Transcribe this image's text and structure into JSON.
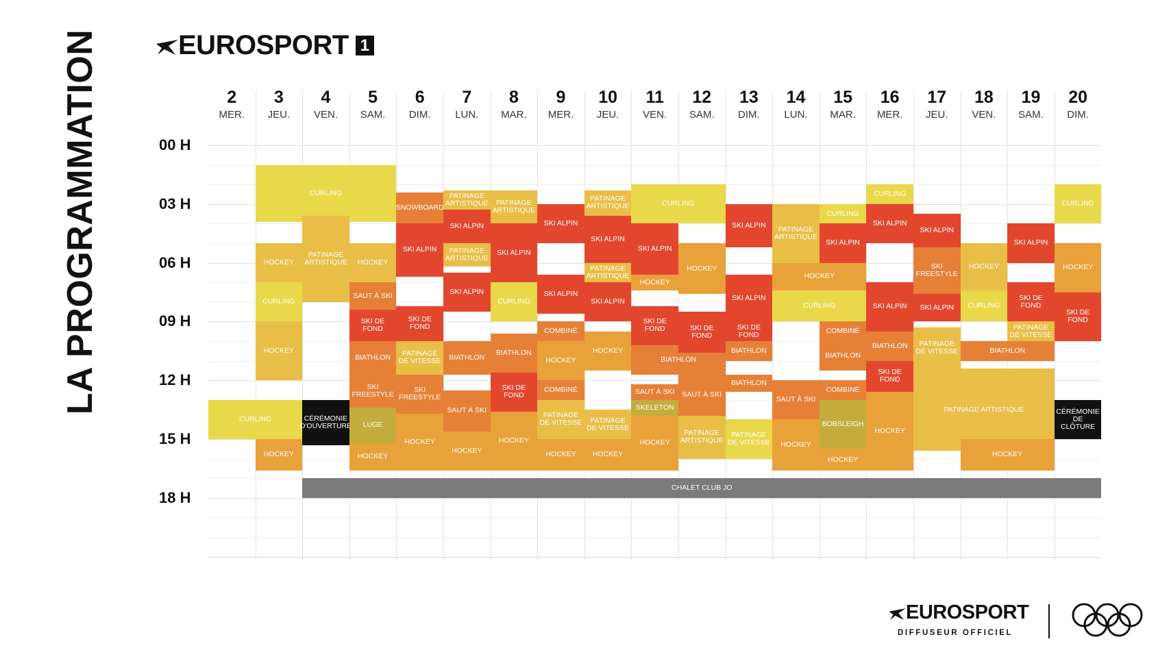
{
  "side_title": "LA PROGRAMMATION",
  "channel_logo": {
    "brand": "EUROSPORT",
    "channel": "1"
  },
  "footer": {
    "brand": "EUROSPORT",
    "subtitle": "DIFFUSEUR OFFICIEL",
    "rings_icon": "olympic-rings-icon"
  },
  "colors": {
    "yellow": "#E9D84A",
    "gold": "#E9BE47",
    "orange": "#E9A13A",
    "orange_dark": "#E68037",
    "red": "#E2472E",
    "olive": "#C4AC3C",
    "black": "#111111",
    "gray": "#7B7B7B"
  },
  "schedule": {
    "days": [
      {
        "num": "2",
        "name": "MER."
      },
      {
        "num": "3",
        "name": "JEU."
      },
      {
        "num": "4",
        "name": "VEN."
      },
      {
        "num": "5",
        "name": "SAM."
      },
      {
        "num": "6",
        "name": "DIM."
      },
      {
        "num": "7",
        "name": "LUN."
      },
      {
        "num": "8",
        "name": "MAR."
      },
      {
        "num": "9",
        "name": "MER."
      },
      {
        "num": "10",
        "name": "JEU."
      },
      {
        "num": "11",
        "name": "VEN."
      },
      {
        "num": "12",
        "name": "SAM."
      },
      {
        "num": "13",
        "name": "DIM."
      },
      {
        "num": "14",
        "name": "LUN."
      },
      {
        "num": "15",
        "name": "MAR."
      },
      {
        "num": "16",
        "name": "MER."
      },
      {
        "num": "17",
        "name": "JEU."
      },
      {
        "num": "18",
        "name": "VEN."
      },
      {
        "num": "19",
        "name": "SAM."
      },
      {
        "num": "20",
        "name": "DIM."
      }
    ],
    "hours": [
      "00 H",
      "03 H",
      "06 H",
      "09 H",
      "12 H",
      "15 H",
      "18 H"
    ],
    "events": [
      {
        "label": "CURLING",
        "col": 1,
        "span": 3,
        "start": 1.0,
        "end": 3.9,
        "color": "yellow"
      },
      {
        "label": "HOCKEY",
        "col": 1,
        "span": 1,
        "start": 5.0,
        "end": 7.0,
        "color": "gold"
      },
      {
        "label": "CURLING",
        "col": 1,
        "span": 1,
        "start": 7.0,
        "end": 9.0,
        "color": "yellow"
      },
      {
        "label": "HOCKEY",
        "col": 1,
        "span": 1,
        "start": 9.0,
        "end": 12.0,
        "color": "gold"
      },
      {
        "label": "CURLING",
        "col": 0,
        "span": 2,
        "start": 13.0,
        "end": 15.0,
        "color": "yellow"
      },
      {
        "label": "HOCKEY",
        "col": 1,
        "span": 1,
        "start": 15.0,
        "end": 16.6,
        "color": "orange"
      },
      {
        "label": "PATINAGE ARTISTIQUE",
        "col": 2,
        "span": 1,
        "start": 3.6,
        "end": 8.0,
        "color": "gold"
      },
      {
        "label": "CÉRÉMONIE D'OUVERTURE",
        "col": 2,
        "span": 1,
        "start": 13.0,
        "end": 15.3,
        "color": "black"
      },
      {
        "label": "HOCKEY",
        "col": 3,
        "span": 1,
        "start": 5.0,
        "end": 7.0,
        "color": "gold"
      },
      {
        "label": "SAUT À SKI",
        "col": 3,
        "span": 1,
        "start": 7.0,
        "end": 8.4,
        "color": "orange_dark"
      },
      {
        "label": "SKI DE FOND",
        "col": 3,
        "span": 1,
        "start": 8.4,
        "end": 10.0,
        "color": "red"
      },
      {
        "label": "BIATHLON",
        "col": 3,
        "span": 1,
        "start": 10.0,
        "end": 11.7,
        "color": "orange_dark"
      },
      {
        "label": "SKI FREESTYLE",
        "col": 3,
        "span": 1,
        "start": 11.7,
        "end": 13.4,
        "color": "orange_dark"
      },
      {
        "label": "LUGE",
        "col": 3,
        "span": 1,
        "start": 13.4,
        "end": 15.2,
        "color": "olive"
      },
      {
        "label": "HOCKEY",
        "col": 3,
        "span": 1,
        "start": 15.2,
        "end": 16.6,
        "color": "orange"
      },
      {
        "label": "SNOWBOARD",
        "col": 4,
        "span": 1,
        "start": 2.4,
        "end": 4.0,
        "color": "orange_dark"
      },
      {
        "label": "SKI ALPIN",
        "col": 4,
        "span": 1,
        "start": 4.0,
        "end": 6.7,
        "color": "red"
      },
      {
        "label": "SKI DE FOND",
        "col": 4,
        "span": 1,
        "start": 8.2,
        "end": 10.0,
        "color": "red"
      },
      {
        "label": "PATINAGE DE VITESSE",
        "col": 4,
        "span": 1,
        "start": 10.0,
        "end": 11.7,
        "color": "gold"
      },
      {
        "label": "SKI FREESTYLE",
        "col": 4,
        "span": 1,
        "start": 11.7,
        "end": 13.7,
        "color": "orange_dark"
      },
      {
        "label": "HOCKEY",
        "col": 4,
        "span": 1,
        "start": 13.7,
        "end": 16.6,
        "color": "orange"
      },
      {
        "label": "PATINAGE ARTISTIQUE",
        "col": 5,
        "span": 1,
        "start": 2.3,
        "end": 3.3,
        "color": "gold"
      },
      {
        "label": "SKI ALPIN",
        "col": 5,
        "span": 1,
        "start": 3.3,
        "end": 5.0,
        "color": "red"
      },
      {
        "label": "PATINAGE ARTISTIQUE",
        "col": 5,
        "span": 1,
        "start": 5.0,
        "end": 6.2,
        "color": "gold"
      },
      {
        "label": "SKI ALPIN",
        "col": 5,
        "span": 1,
        "start": 6.5,
        "end": 8.5,
        "color": "red"
      },
      {
        "label": "BIATHLON",
        "col": 5,
        "span": 1,
        "start": 10.0,
        "end": 11.7,
        "color": "orange_dark"
      },
      {
        "label": "SAUT À SKI",
        "col": 5,
        "span": 1,
        "start": 12.5,
        "end": 14.6,
        "color": "orange_dark"
      },
      {
        "label": "HOCKEY",
        "col": 5,
        "span": 1,
        "start": 14.6,
        "end": 16.6,
        "color": "orange"
      },
      {
        "label": "PATINAGE ARTISTIQUE",
        "col": 6,
        "span": 1,
        "start": 2.3,
        "end": 4.0,
        "color": "gold"
      },
      {
        "label": "SKI ALPIN",
        "col": 6,
        "span": 1,
        "start": 4.0,
        "end": 7.0,
        "color": "red"
      },
      {
        "label": "CURLING",
        "col": 6,
        "span": 1,
        "start": 7.0,
        "end": 9.0,
        "color": "yellow"
      },
      {
        "label": "BIATHLON",
        "col": 6,
        "span": 1,
        "start": 9.6,
        "end": 11.6,
        "color": "orange_dark"
      },
      {
        "label": "SKI DE FOND",
        "col": 6,
        "span": 1,
        "start": 11.6,
        "end": 13.6,
        "color": "red"
      },
      {
        "label": "HOCKEY",
        "col": 6,
        "span": 1,
        "start": 13.6,
        "end": 16.6,
        "color": "orange"
      },
      {
        "label": "SKI ALPIN",
        "col": 7,
        "span": 1,
        "start": 3.0,
        "end": 5.0,
        "color": "red"
      },
      {
        "label": "SKI ALPIN",
        "col": 7,
        "span": 1,
        "start": 6.6,
        "end": 8.6,
        "color": "red"
      },
      {
        "label": "COMBINÉ",
        "col": 7,
        "span": 1,
        "start": 9.0,
        "end": 10.0,
        "color": "orange_dark"
      },
      {
        "label": "HOCKEY",
        "col": 7,
        "span": 1,
        "start": 10.0,
        "end": 12.0,
        "color": "orange"
      },
      {
        "label": "COMBINÉ",
        "col": 7,
        "span": 1,
        "start": 12.0,
        "end": 13.0,
        "color": "orange_dark"
      },
      {
        "label": "PATINAGE DE VITESSE",
        "col": 7,
        "span": 1,
        "start": 13.0,
        "end": 15.0,
        "color": "gold"
      },
      {
        "label": "HOCKEY",
        "col": 7,
        "span": 1,
        "start": 15.0,
        "end": 16.6,
        "color": "orange"
      },
      {
        "label": "PATINAGE ARTISTIQUE",
        "col": 8,
        "span": 1,
        "start": 2.3,
        "end": 3.6,
        "color": "gold"
      },
      {
        "label": "SKI ALPIN",
        "col": 8,
        "span": 1,
        "start": 3.6,
        "end": 6.0,
        "color": "red"
      },
      {
        "label": "PATINAGE ARTISTIQUE",
        "col": 8,
        "span": 1,
        "start": 6.0,
        "end": 7.0,
        "color": "gold"
      },
      {
        "label": "SKI ALPIN",
        "col": 8,
        "span": 1,
        "start": 7.0,
        "end": 9.0,
        "color": "red"
      },
      {
        "label": "HOCKEY",
        "col": 8,
        "span": 1,
        "start": 9.5,
        "end": 11.5,
        "color": "orange"
      },
      {
        "label": "PATINAGE DE VITESSE",
        "col": 8,
        "span": 1,
        "start": 13.5,
        "end": 15.0,
        "color": "gold"
      },
      {
        "label": "HOCKEY",
        "col": 8,
        "span": 1,
        "start": 15.0,
        "end": 16.6,
        "color": "orange"
      },
      {
        "label": "CURLING",
        "col": 9,
        "span": 2,
        "start": 2.0,
        "end": 4.0,
        "color": "yellow"
      },
      {
        "label": "SKI ALPIN",
        "col": 9,
        "span": 1,
        "start": 4.0,
        "end": 6.6,
        "color": "red"
      },
      {
        "label": "HOCKEY",
        "col": 9,
        "span": 1,
        "start": 6.6,
        "end": 7.4,
        "color": "orange"
      },
      {
        "label": "SKI DE FOND",
        "col": 9,
        "span": 1,
        "start": 8.2,
        "end": 10.2,
        "color": "red"
      },
      {
        "label": "BIATHLON",
        "col": 9,
        "span": 2,
        "start": 10.2,
        "end": 11.7,
        "color": "orange_dark"
      },
      {
        "label": "SAUT À SKI",
        "col": 9,
        "span": 1,
        "start": 12.2,
        "end": 13.0,
        "color": "orange_dark"
      },
      {
        "label": "SKELETON",
        "col": 9,
        "span": 1,
        "start": 13.0,
        "end": 13.8,
        "color": "olive"
      },
      {
        "label": "HOCKEY",
        "col": 9,
        "span": 1,
        "start": 13.8,
        "end": 16.6,
        "color": "orange"
      },
      {
        "label": "HOCKEY",
        "col": 10,
        "span": 1,
        "start": 5.0,
        "end": 7.6,
        "color": "orange"
      },
      {
        "label": "SKI DE FOND",
        "col": 10,
        "span": 1,
        "start": 8.5,
        "end": 10.6,
        "color": "red"
      },
      {
        "label": "SAUT À SKI",
        "col": 10,
        "span": 1,
        "start": 11.7,
        "end": 13.8,
        "color": "orange_dark"
      },
      {
        "label": "PATINAGE ARTISTIQUE",
        "col": 10,
        "span": 1,
        "start": 13.8,
        "end": 16.0,
        "color": "gold"
      },
      {
        "label": "SKI ALPIN",
        "col": 11,
        "span": 1,
        "start": 3.0,
        "end": 5.2,
        "color": "red"
      },
      {
        "label": "SKI ALPIN",
        "col": 11,
        "span": 1,
        "start": 6.6,
        "end": 9.0,
        "color": "red"
      },
      {
        "label": "SKI DE FOND",
        "col": 11,
        "span": 1,
        "start": 9.0,
        "end": 10.0,
        "color": "red"
      },
      {
        "label": "BIATHLON",
        "col": 11,
        "span": 1,
        "start": 10.0,
        "end": 11.0,
        "color": "orange_dark"
      },
      {
        "label": "BIATHLON",
        "col": 11,
        "span": 1,
        "start": 11.7,
        "end": 12.6,
        "color": "orange_dark"
      },
      {
        "label": "PATINAGE DE VITESSE",
        "col": 11,
        "span": 1,
        "start": 14.0,
        "end": 16.0,
        "color": "yellow"
      },
      {
        "label": "PATINAGE ARTISTIQUE",
        "col": 12,
        "span": 1,
        "start": 3.0,
        "end": 6.0,
        "color": "gold"
      },
      {
        "label": "HOCKEY",
        "col": 12,
        "span": 2,
        "start": 6.0,
        "end": 7.4,
        "color": "orange"
      },
      {
        "label": "CURLING",
        "col": 12,
        "span": 2,
        "start": 7.4,
        "end": 9.0,
        "color": "yellow"
      },
      {
        "label": "SAUT À SKI",
        "col": 12,
        "span": 1,
        "start": 12.0,
        "end": 14.0,
        "color": "orange_dark"
      },
      {
        "label": "HOCKEY",
        "col": 12,
        "span": 1,
        "start": 14.0,
        "end": 16.6,
        "color": "orange"
      },
      {
        "label": "CURLING",
        "col": 13,
        "span": 1,
        "start": 3.0,
        "end": 4.0,
        "color": "yellow"
      },
      {
        "label": "SKI ALPIN",
        "col": 13,
        "span": 1,
        "start": 4.0,
        "end": 6.0,
        "color": "red"
      },
      {
        "label": "COMBINÉ",
        "col": 13,
        "span": 1,
        "start": 9.0,
        "end": 10.0,
        "color": "orange_dark"
      },
      {
        "label": "BIATHLON",
        "col": 13,
        "span": 1,
        "start": 10.0,
        "end": 11.5,
        "color": "orange_dark"
      },
      {
        "label": "COMBINÉ",
        "col": 13,
        "span": 1,
        "start": 12.0,
        "end": 13.0,
        "color": "orange_dark"
      },
      {
        "label": "BOBSLEIGH",
        "col": 13,
        "span": 1,
        "start": 13.0,
        "end": 15.5,
        "color": "olive"
      },
      {
        "label": "HOCKEY",
        "col": 13,
        "span": 1,
        "start": 15.5,
        "end": 16.6,
        "color": "orange"
      },
      {
        "label": "CURLING",
        "col": 14,
        "span": 1,
        "start": 2.0,
        "end": 3.0,
        "color": "yellow"
      },
      {
        "label": "SKI ALPIN",
        "col": 14,
        "span": 1,
        "start": 3.0,
        "end": 5.0,
        "color": "red"
      },
      {
        "label": "SKI ALPIN",
        "col": 14,
        "span": 1,
        "start": 7.0,
        "end": 9.5,
        "color": "red"
      },
      {
        "label": "BIATHLON",
        "col": 14,
        "span": 1,
        "start": 9.5,
        "end": 11.0,
        "color": "orange_dark"
      },
      {
        "label": "SKI DE FOND",
        "col": 14,
        "span": 1,
        "start": 11.0,
        "end": 12.6,
        "color": "red"
      },
      {
        "label": "HOCKEY",
        "col": 14,
        "span": 1,
        "start": 12.6,
        "end": 16.6,
        "color": "orange"
      },
      {
        "label": "SKI ALPIN",
        "col": 15,
        "span": 1,
        "start": 3.5,
        "end": 5.2,
        "color": "red"
      },
      {
        "label": "SKI FREESTYLE",
        "col": 15,
        "span": 1,
        "start": 5.2,
        "end": 7.6,
        "color": "orange_dark"
      },
      {
        "label": "SKI ALPIN",
        "col": 15,
        "span": 1,
        "start": 7.6,
        "end": 9.0,
        "color": "red"
      },
      {
        "label": "PATINAGE DE VITESSE",
        "col": 15,
        "span": 1,
        "start": 9.3,
        "end": 11.4,
        "color": "gold"
      },
      {
        "label": "PATINAGE ARTISTIQUE",
        "col": 15,
        "span": 3,
        "start": 11.4,
        "end": 15.6,
        "color": "gold"
      },
      {
        "label": "HOCKEY",
        "col": 16,
        "span": 1,
        "start": 5.0,
        "end": 7.4,
        "color": "gold"
      },
      {
        "label": "CURLING",
        "col": 16,
        "span": 1,
        "start": 7.4,
        "end": 9.0,
        "color": "yellow"
      },
      {
        "label": "BIATHLON",
        "col": 16,
        "span": 2,
        "start": 10.0,
        "end": 11.0,
        "color": "orange_dark"
      },
      {
        "label": "HOCKEY",
        "col": 16,
        "span": 2,
        "start": 15.0,
        "end": 16.6,
        "color": "orange"
      },
      {
        "label": "SKI ALPIN",
        "col": 17,
        "span": 1,
        "start": 4.0,
        "end": 6.0,
        "color": "red"
      },
      {
        "label": "SKI DE FOND",
        "col": 17,
        "span": 1,
        "start": 7.0,
        "end": 9.0,
        "color": "red"
      },
      {
        "label": "PATINAGE DE VITESSE",
        "col": 17,
        "span": 1,
        "start": 9.0,
        "end": 10.0,
        "color": "gold"
      },
      {
        "label": "CURLING",
        "col": 18,
        "span": 1,
        "start": 2.0,
        "end": 4.0,
        "color": "yellow"
      },
      {
        "label": "HOCKEY",
        "col": 18,
        "span": 1,
        "start": 5.0,
        "end": 7.5,
        "color": "orange"
      },
      {
        "label": "SKI DE FOND",
        "col": 18,
        "span": 1,
        "start": 7.5,
        "end": 10.0,
        "color": "red"
      },
      {
        "label": "CÉRÉMONIE DE CLÔTURE",
        "col": 18,
        "span": 1,
        "start": 13.0,
        "end": 15.0,
        "color": "black"
      },
      {
        "label": "CHALET CLUB JO",
        "col": 2,
        "span": 17,
        "start": 17.0,
        "end": 18.0,
        "color": "gray"
      }
    ]
  }
}
